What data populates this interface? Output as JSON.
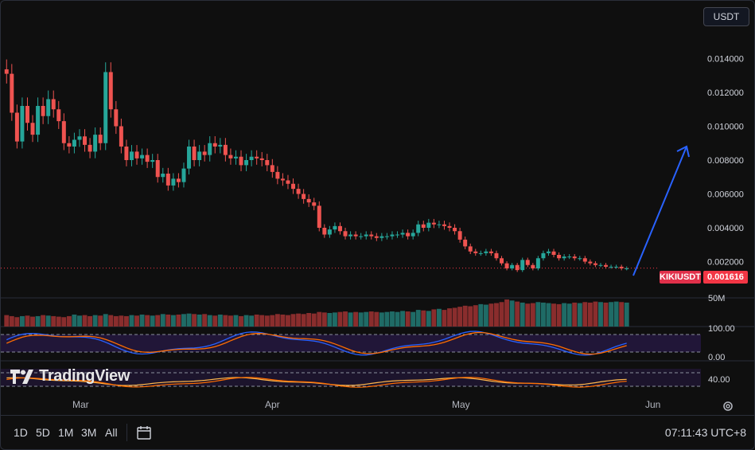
{
  "symbol": "KIKIUSDT",
  "currency": "USDT",
  "last_price": "0.001616",
  "clock": "07:11:43 UTC+8",
  "logo": "TradingView",
  "timeframes": [
    "1D",
    "5D",
    "1M",
    "3M",
    "All"
  ],
  "colors": {
    "up": "#26a69a",
    "down": "#ef5350",
    "rsi": "#2962ff",
    "rsi_ma": "#ff6d00",
    "arrow": "#2962ff",
    "band": "#2a1a4a"
  },
  "chart_data": {
    "type": "candlestick",
    "x_ticks": [
      "Mar",
      "Apr",
      "May",
      "Jun"
    ],
    "price_axis": {
      "ticks": [
        "0.014000",
        "0.012000",
        "0.010000",
        "0.008000",
        "0.006000",
        "0.004000",
        "0.002000"
      ],
      "ylim": [
        0,
        0.016
      ]
    },
    "close": [
      0.0131,
      0.0108,
      0.0091,
      0.0112,
      0.0102,
      0.0095,
      0.0112,
      0.0106,
      0.0116,
      0.011,
      0.0103,
      0.009,
      0.0088,
      0.0092,
      0.0094,
      0.0089,
      0.0085,
      0.0095,
      0.009,
      0.0132,
      0.011,
      0.01,
      0.0088,
      0.008,
      0.0085,
      0.0081,
      0.0083,
      0.0079,
      0.008,
      0.007,
      0.0072,
      0.0065,
      0.0069,
      0.0067,
      0.0075,
      0.0088,
      0.008,
      0.0085,
      0.0083,
      0.009,
      0.0088,
      0.0089,
      0.0083,
      0.0081,
      0.0082,
      0.0077,
      0.008,
      0.0082,
      0.0081,
      0.008,
      0.0077,
      0.0073,
      0.0069,
      0.0068,
      0.0066,
      0.0063,
      0.006,
      0.0057,
      0.0055,
      0.0053,
      0.004,
      0.0036,
      0.0039,
      0.0041,
      0.0038,
      0.0035,
      0.0036,
      0.0035,
      0.0035,
      0.0036,
      0.0035,
      0.0034,
      0.0035,
      0.0035,
      0.0036,
      0.0036,
      0.0037,
      0.0035,
      0.0037,
      0.0042,
      0.004,
      0.0043,
      0.0042,
      0.0042,
      0.0041,
      0.004,
      0.0038,
      0.0033,
      0.0029,
      0.0026,
      0.0025,
      0.0025,
      0.0026,
      0.0025,
      0.0022,
      0.0019,
      0.0016,
      0.0018,
      0.0015,
      0.0021,
      0.0018,
      0.0016,
      0.0022,
      0.0025,
      0.0026,
      0.0024,
      0.0022,
      0.0023,
      0.0023,
      0.0022,
      0.0022,
      0.002,
      0.0019,
      0.0018,
      0.0018,
      0.0017,
      0.0017,
      0.0017,
      0.0016,
      0.0016
    ],
    "volume": [
      22,
      20,
      18,
      20,
      21,
      19,
      20,
      22,
      21,
      20,
      19,
      18,
      20,
      23,
      21,
      22,
      20,
      22,
      21,
      24,
      22,
      20,
      21,
      20,
      22,
      21,
      23,
      22,
      21,
      22,
      24,
      23,
      22,
      23,
      24,
      25,
      24,
      23,
      24,
      22,
      21,
      23,
      22,
      21,
      22,
      20,
      22,
      21,
      23,
      22,
      21,
      22,
      24,
      23,
      22,
      24,
      25,
      24,
      26,
      25,
      28,
      27,
      26,
      27,
      28,
      29,
      27,
      28,
      27,
      28,
      29,
      28,
      27,
      28,
      29,
      28,
      30,
      29,
      28,
      32,
      31,
      30,
      33,
      34,
      32,
      35,
      36,
      38,
      40,
      39,
      41,
      43,
      42,
      44,
      45,
      47,
      52,
      50,
      48,
      46,
      44,
      45,
      47,
      46,
      45,
      44,
      43,
      45,
      44,
      46,
      45,
      47,
      46,
      48,
      47,
      46,
      47,
      48,
      47,
      46
    ]
  },
  "rsi_panel": {
    "levels": [
      "100.00",
      "0.00"
    ]
  },
  "stoch_panel": {
    "levels": [
      "40.00"
    ]
  }
}
